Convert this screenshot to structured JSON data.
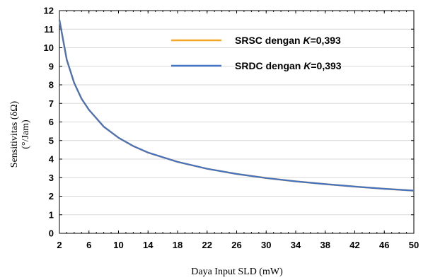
{
  "chart_data": {
    "type": "line",
    "xlabel": "Daya Input SLD (mW)",
    "ylabel_line1": "Sensitivitas (δΩ)",
    "ylabel_line2": "(°/Jam)",
    "xlim": [
      2,
      50
    ],
    "ylim": [
      0,
      12
    ],
    "x_ticks": [
      "2",
      "6",
      "10",
      "14",
      "18",
      "22",
      "26",
      "30",
      "34",
      "38",
      "42",
      "46",
      "50"
    ],
    "y_ticks": [
      "0",
      "1",
      "2",
      "3",
      "4",
      "5",
      "6",
      "7",
      "8",
      "9",
      "10",
      "11",
      "12"
    ],
    "grid": "horizontal",
    "legend_position": "upper-right inside plot",
    "series": [
      {
        "name": "SRSC dengan K=0,393",
        "name_prefix": "SRSC dengan ",
        "name_k": "K",
        "name_suffix": "=0,393",
        "color": "#f5a623",
        "x": [
          2,
          3,
          4,
          5,
          6,
          8,
          10,
          12,
          14,
          18,
          22,
          26,
          30,
          34,
          38,
          42,
          46,
          50
        ],
        "y": [
          11.5,
          9.35,
          8.1,
          7.25,
          6.65,
          5.75,
          5.15,
          4.7,
          4.35,
          3.85,
          3.48,
          3.2,
          2.98,
          2.8,
          2.65,
          2.52,
          2.4,
          2.3
        ]
      },
      {
        "name": "SRDC dengan K=0,393",
        "name_prefix": "SRDC dengan ",
        "name_k": "K",
        "name_suffix": "=0,393",
        "color": "#4472c4",
        "x": [
          2,
          3,
          4,
          5,
          6,
          8,
          10,
          12,
          14,
          18,
          22,
          26,
          30,
          34,
          38,
          42,
          46,
          50
        ],
        "y": [
          11.5,
          9.35,
          8.1,
          7.25,
          6.65,
          5.75,
          5.15,
          4.7,
          4.35,
          3.85,
          3.48,
          3.2,
          2.98,
          2.8,
          2.65,
          2.52,
          2.4,
          2.3
        ]
      }
    ]
  }
}
